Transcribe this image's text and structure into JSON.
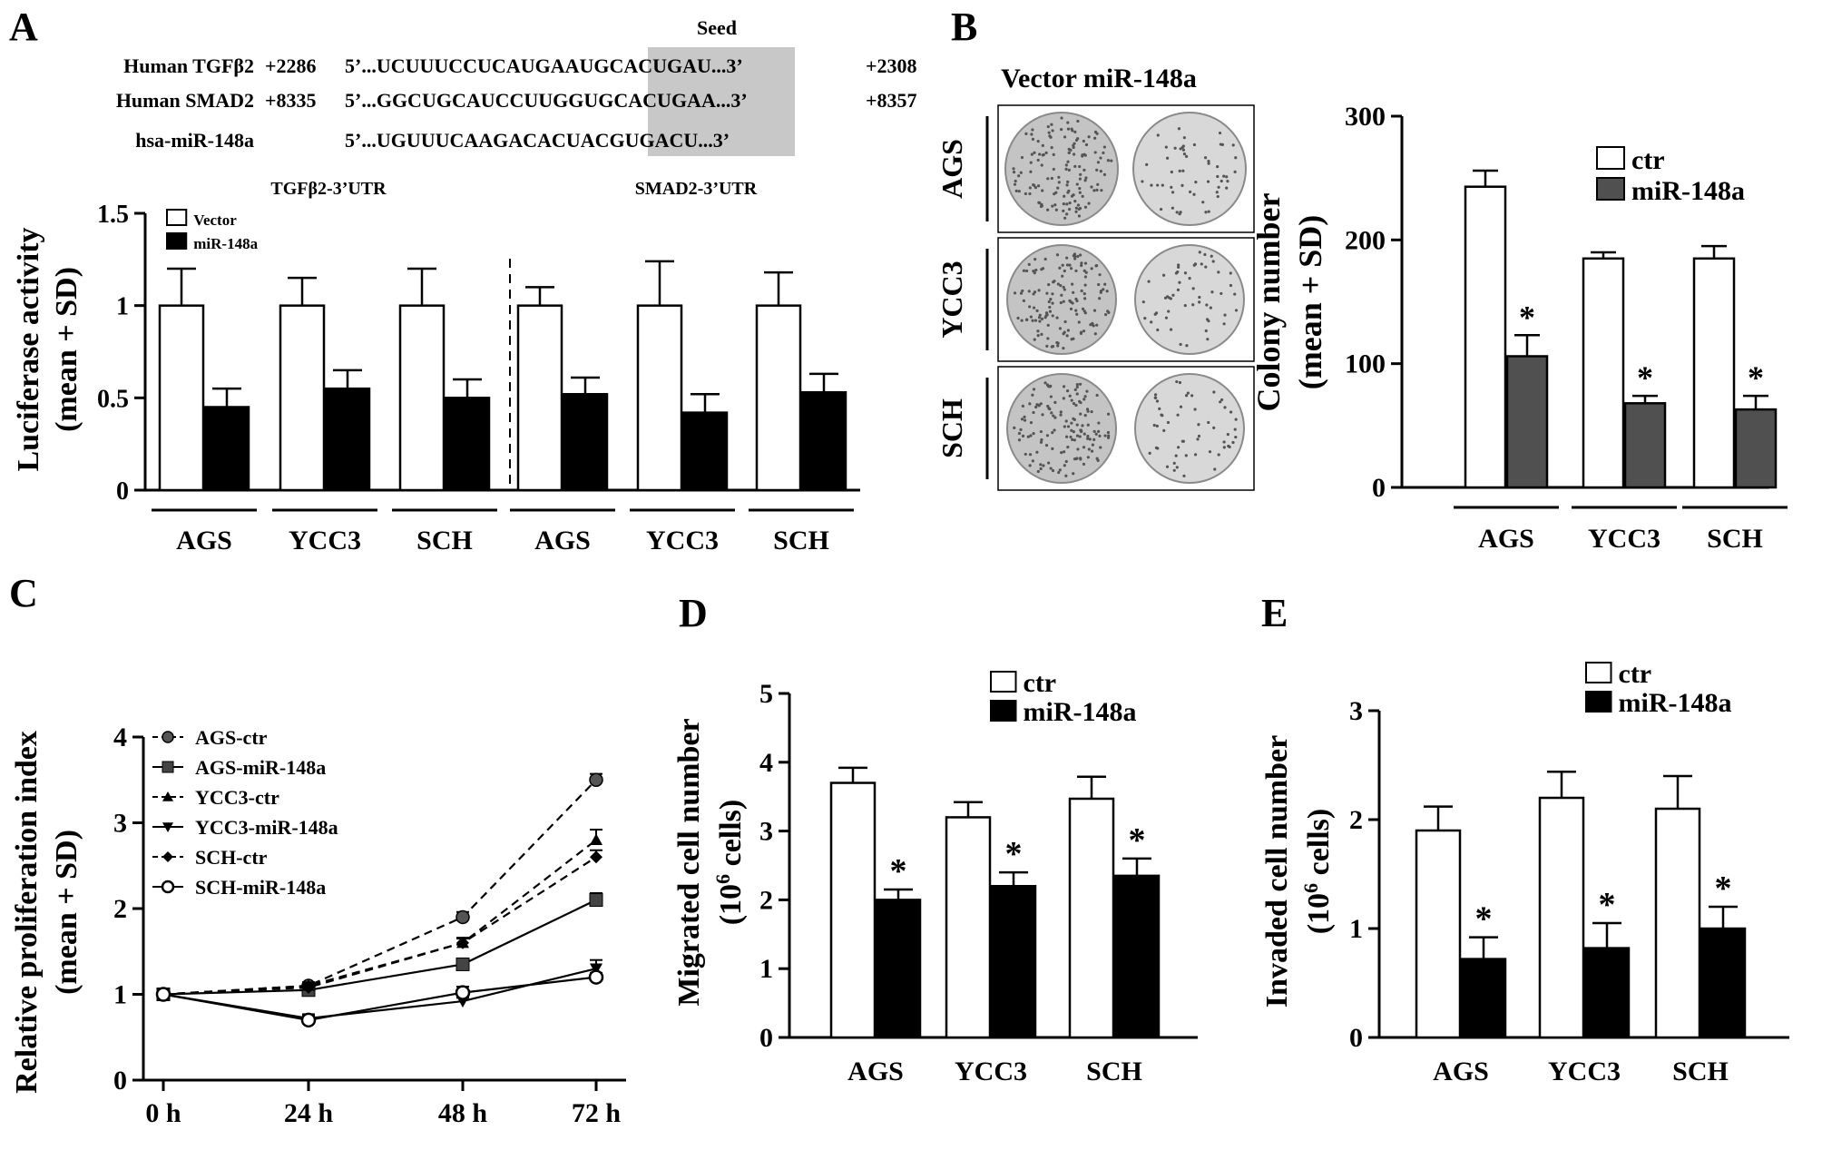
{
  "panel_letters": [
    "A",
    "B",
    "C",
    "D",
    "E"
  ],
  "seed_label": "Seed",
  "sequences": [
    {
      "name": "Human TGFβ2",
      "start": "+2286",
      "seq_pre": "5’...UCUUUCCUCAUGAA",
      "seq_seed": "UGCACUGA",
      "seq_post": "U...3’",
      "end": "+2308"
    },
    {
      "name": "Human SMAD2",
      "start": "+8335",
      "seq_pre": "5’...GGCUGCAUCCUUGG",
      "seq_seed": "UGCACUGA",
      "seq_post": "A...3’",
      "end": "+8357"
    },
    {
      "name": "hsa-miR-148a",
      "start": "",
      "seq_pre": "5’...UGUUUCAAGACACU",
      "seq_seed": "ACGUGACU",
      "seq_post": "...3’",
      "end": ""
    }
  ],
  "colonies_header": "Vector miR-148a",
  "colony_rows": [
    "AGS",
    "YCC3",
    "SCH"
  ],
  "colors": {
    "ink": "#000000",
    "seed_box": "#c8c8c8",
    "dark_gray_bar": "#505050",
    "plate": "#d4d4d4"
  },
  "chart_data": [
    {
      "id": "A",
      "type": "bar",
      "group_titles": [
        "TGFβ2-3’UTR",
        "SMAD2-3’UTR"
      ],
      "categories": [
        "AGS",
        "YCC3",
        "SCH",
        "AGS",
        "YCC3",
        "SCH"
      ],
      "ylabel": "Luciferase activity\n(mean + SD)",
      "ylim": [
        0,
        1.5
      ],
      "yticks": [
        0,
        0.5,
        1,
        1.5
      ],
      "ytick_labels": [
        "0",
        "0.5",
        "1",
        "1.5"
      ],
      "legend": "top-left",
      "series": [
        {
          "name": "Vector",
          "values": [
            1.0,
            1.0,
            1.0,
            1.0,
            1.0,
            1.0
          ],
          "sd": [
            0.2,
            0.15,
            0.2,
            0.1,
            0.24,
            0.18
          ]
        },
        {
          "name": "miR-148a",
          "values": [
            0.45,
            0.55,
            0.5,
            0.52,
            0.42,
            0.53
          ],
          "sd": [
            0.1,
            0.1,
            0.1,
            0.09,
            0.1,
            0.1
          ]
        }
      ]
    },
    {
      "id": "B",
      "type": "bar",
      "categories": [
        "AGS",
        "YCC3",
        "SCH"
      ],
      "ylabel": "Colony number\n(mean + SD)",
      "ylim": [
        0,
        300
      ],
      "yticks": [
        0,
        100,
        200,
        300
      ],
      "ytick_labels": [
        "0",
        "100",
        "200",
        "300"
      ],
      "legend": "top-right",
      "series": [
        {
          "name": "ctr",
          "values": [
            243,
            185,
            185
          ],
          "sd": [
            13,
            5,
            10
          ]
        },
        {
          "name": "miR-148a",
          "values": [
            106,
            68,
            63
          ],
          "sd": [
            17,
            6,
            11
          ],
          "sig": [
            "*",
            "*",
            "*"
          ]
        }
      ]
    },
    {
      "id": "C",
      "type": "line",
      "x": [
        "0 h",
        "24 h",
        "48 h",
        "72 h"
      ],
      "ylabel": "Relative proliferation index\n(mean + SD)",
      "ylim": [
        0,
        4
      ],
      "yticks": [
        0,
        1,
        2,
        3,
        4
      ],
      "ytick_labels": [
        "0",
        "1",
        "2",
        "3",
        "4"
      ],
      "legend": "top-left",
      "series": [
        {
          "name": "AGS-ctr",
          "values": [
            1.0,
            1.1,
            1.9,
            3.5
          ],
          "sd": [
            0.03,
            0.04,
            0.06,
            0.07
          ],
          "dash": true,
          "marker": "circle-filled"
        },
        {
          "name": "AGS-miR-148a",
          "values": [
            1.0,
            1.05,
            1.35,
            2.1
          ],
          "sd": [
            0.03,
            0.04,
            0.05,
            0.08
          ],
          "dash": false,
          "marker": "square"
        },
        {
          "name": "YCC3-ctr",
          "values": [
            1.0,
            1.1,
            1.6,
            2.8
          ],
          "sd": [
            0.03,
            0.04,
            0.06,
            0.12
          ],
          "dash": true,
          "marker": "triangle-up"
        },
        {
          "name": "YCC3-miR-148a",
          "values": [
            1.0,
            0.72,
            0.92,
            1.3
          ],
          "sd": [
            0.03,
            0.04,
            0.04,
            0.1
          ],
          "dash": false,
          "marker": "triangle-down"
        },
        {
          "name": "SCH-ctr",
          "values": [
            1.0,
            1.08,
            1.6,
            2.6
          ],
          "sd": [
            0.03,
            0.04,
            0.05,
            0.08
          ],
          "dash": true,
          "marker": "diamond"
        },
        {
          "name": "SCH-miR-148a",
          "values": [
            1.0,
            0.7,
            1.02,
            1.2
          ],
          "sd": [
            0.03,
            0.04,
            0.07,
            0.05
          ],
          "dash": false,
          "marker": "circle-open"
        }
      ]
    },
    {
      "id": "D",
      "type": "bar",
      "categories": [
        "AGS",
        "YCC3",
        "SCH"
      ],
      "ylabel": "Migrated cell number\n(10^6 cells)",
      "ylim": [
        0,
        5
      ],
      "yticks": [
        0,
        1,
        2,
        3,
        4,
        5
      ],
      "ytick_labels": [
        "0",
        "1",
        "2",
        "3",
        "4",
        "5"
      ],
      "legend": "top-right",
      "series": [
        {
          "name": "ctr",
          "values": [
            3.7,
            3.2,
            3.47
          ],
          "sd": [
            0.22,
            0.22,
            0.32
          ]
        },
        {
          "name": "miR-148a",
          "values": [
            2.0,
            2.2,
            2.35
          ],
          "sd": [
            0.15,
            0.2,
            0.25
          ],
          "sig": [
            "*",
            "*",
            "*"
          ]
        }
      ]
    },
    {
      "id": "E",
      "type": "bar",
      "categories": [
        "AGS",
        "YCC3",
        "SCH"
      ],
      "ylabel": "Invaded cell number\n(10^6 cells)",
      "ylim": [
        0,
        3
      ],
      "yticks": [
        0,
        1,
        2,
        3
      ],
      "ytick_labels": [
        "0",
        "1",
        "2",
        "3"
      ],
      "legend": "top-right",
      "series": [
        {
          "name": "ctr",
          "values": [
            1.9,
            2.2,
            2.1
          ],
          "sd": [
            0.22,
            0.24,
            0.3
          ]
        },
        {
          "name": "miR-148a",
          "values": [
            0.72,
            0.82,
            1.0
          ],
          "sd": [
            0.2,
            0.23,
            0.2
          ],
          "sig": [
            "*",
            "*",
            "*"
          ]
        }
      ]
    }
  ]
}
